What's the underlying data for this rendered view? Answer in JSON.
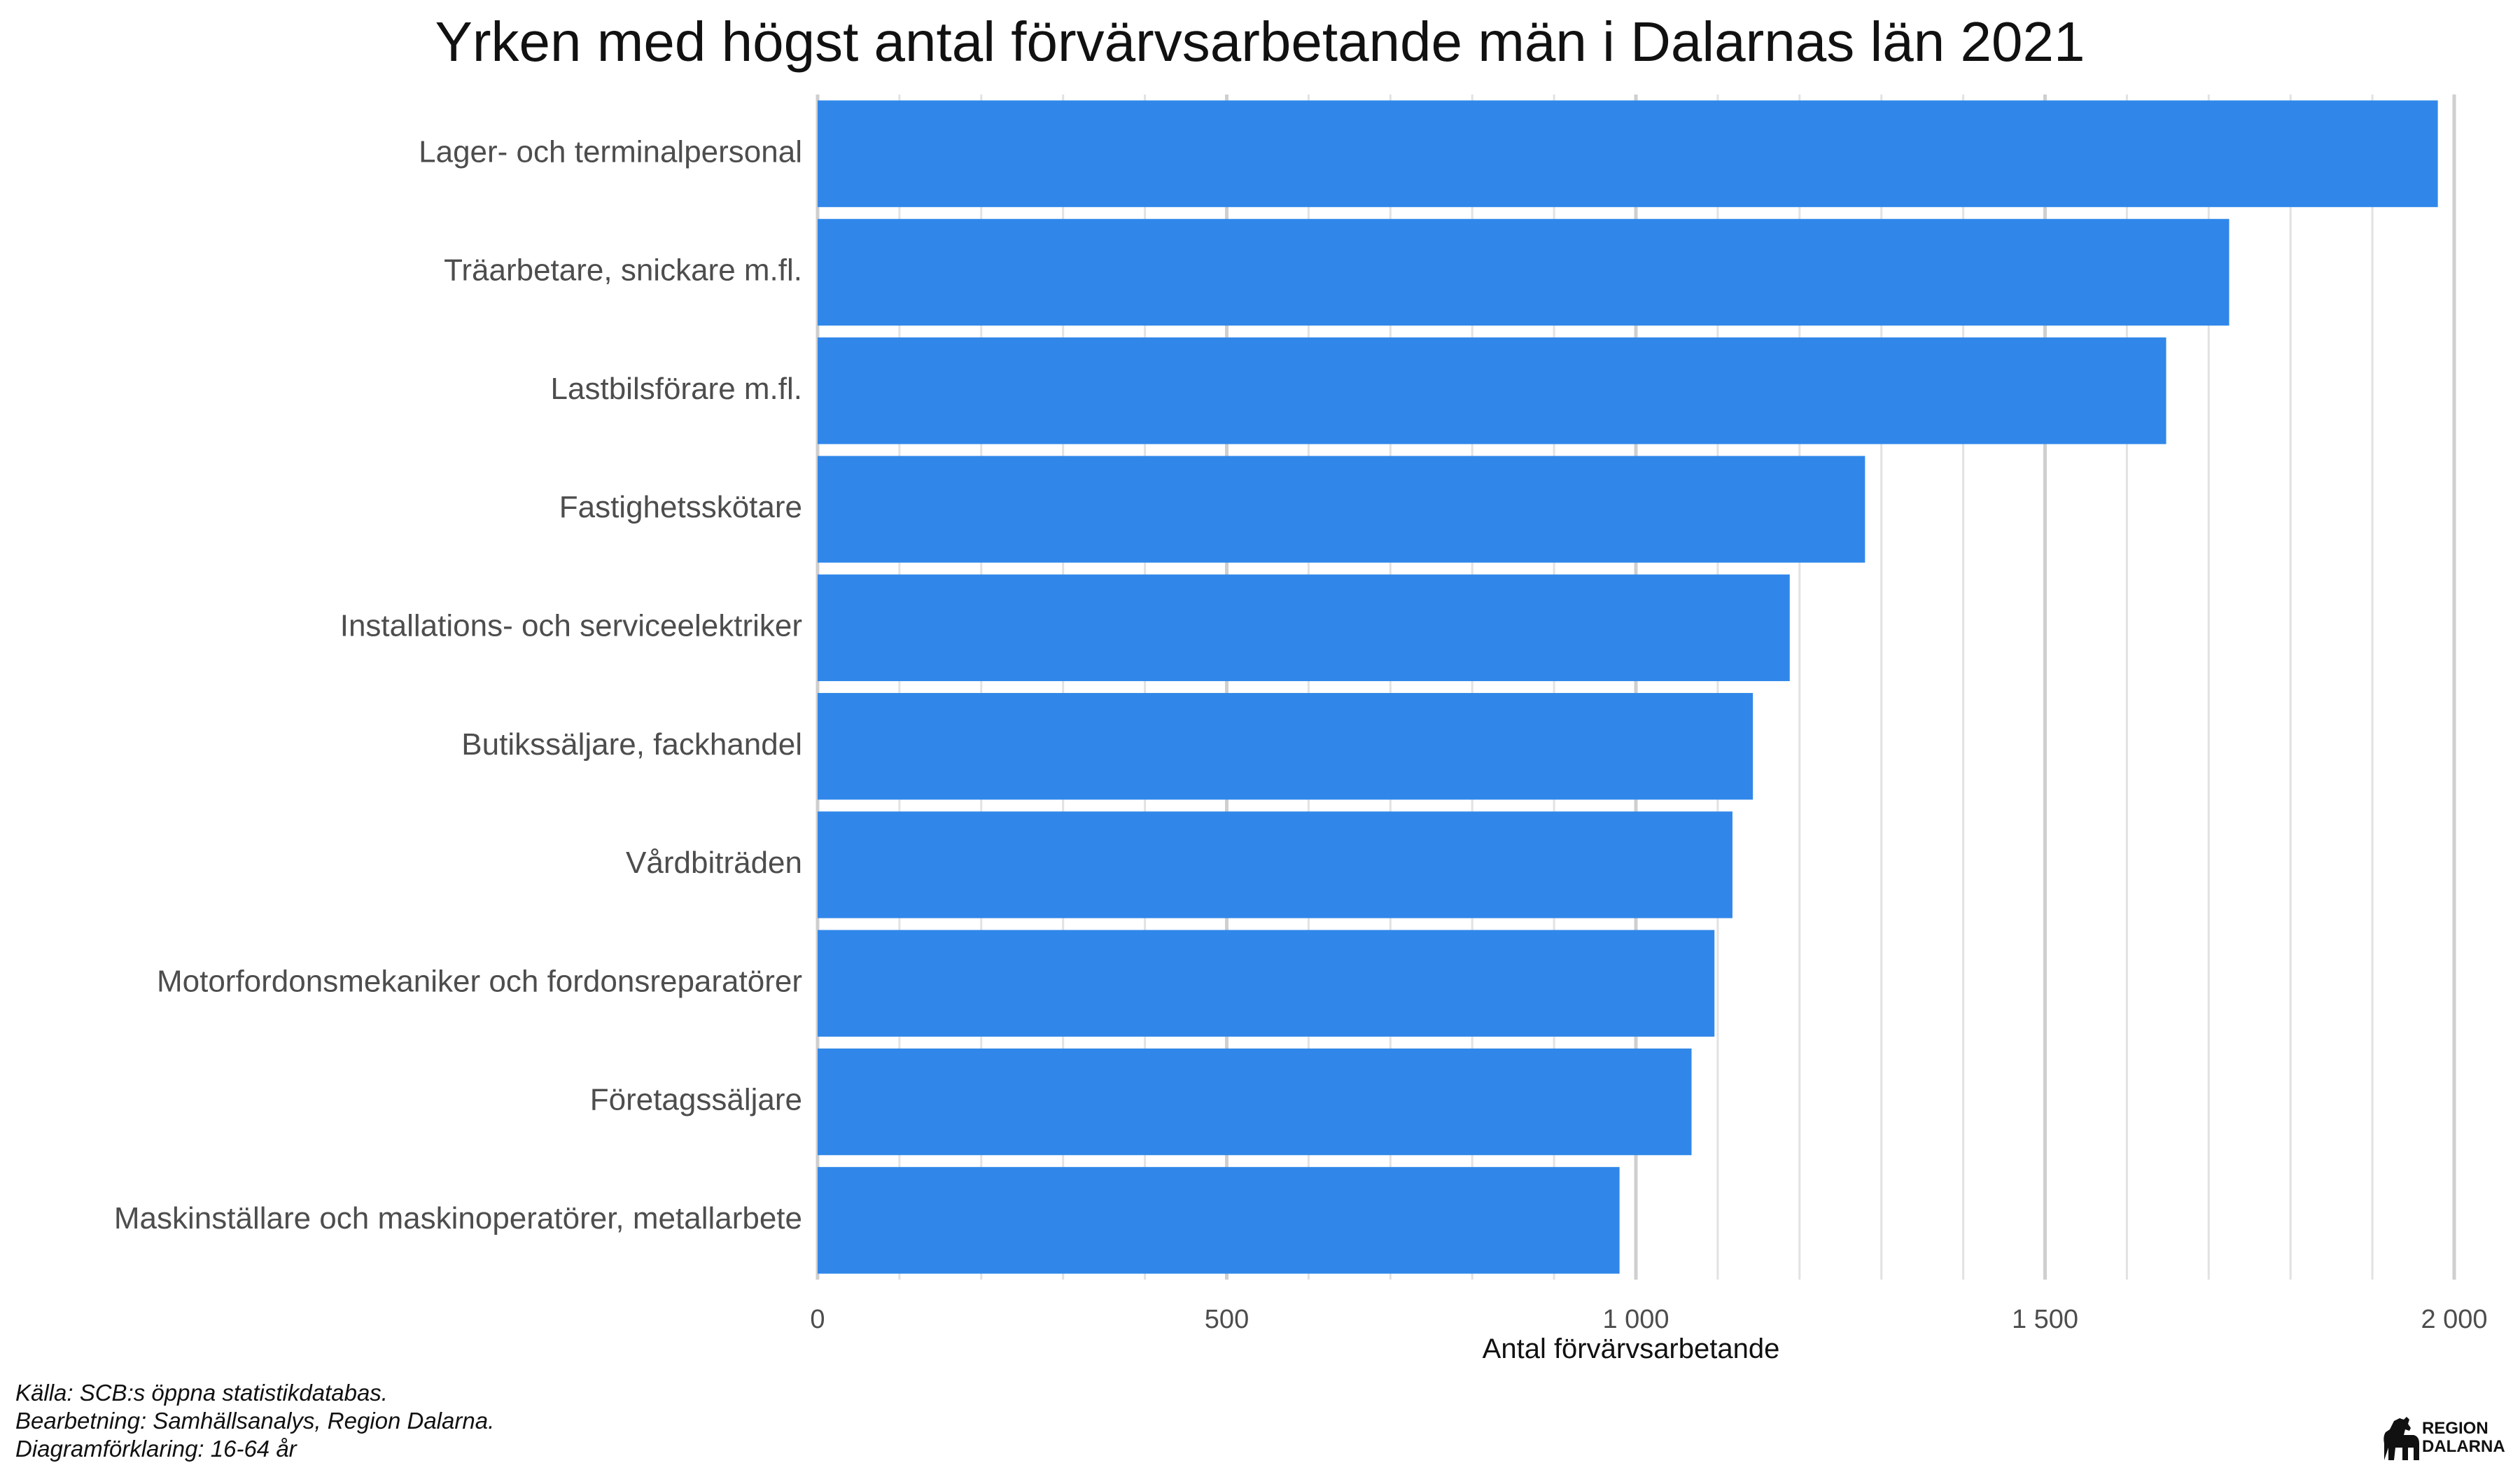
{
  "chart_data": {
    "type": "bar",
    "orientation": "horizontal",
    "title": "Yrken med högst antal förvärvsarbetande män i Dalarnas län 2021",
    "xlabel": "Antal förvärvsarbetande",
    "ylabel": "",
    "xlim": [
      0,
      2000
    ],
    "x_ticks": [
      "0",
      "500",
      "1 000",
      "1 500",
      "2 000"
    ],
    "grid": "vertical",
    "bar_color": "#3087e9",
    "categories": [
      "Lager- och terminalpersonal",
      "Träarbetare, snickare m.fl.",
      "Lastbilsförare m.fl.",
      "Fastighetsskötare",
      "Installations- och serviceelektriker",
      "Butikssäljare, fackhandel",
      "Vårdbiträden",
      "Motorfordonsmekaniker och fordonsreparatörer",
      "Företagssäljare",
      "Maskinställare och maskinoperatörer, metallarbete"
    ],
    "values": [
      1980,
      1725,
      1648,
      1280,
      1188,
      1143,
      1118,
      1096,
      1068,
      980
    ]
  },
  "captions": {
    "source": "Källa: SCB:s öppna statistikdatabas.",
    "processing": "Bearbetning: Samhällsanalys, Region Dalarna.",
    "explanation": "Diagramförklaring: 16-64 år"
  },
  "logo": {
    "line1": "REGION",
    "line2": "DALARNA",
    "icon": "dala-horse-icon"
  }
}
